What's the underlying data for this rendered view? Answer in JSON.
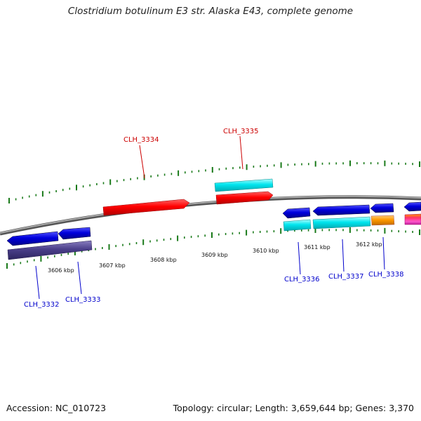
{
  "title": "Clostridium botulinum E3 str. Alaska E43, complete genome",
  "footer": {
    "accession": "Accession: NC_010723",
    "topology": "Topology: circular; Length: 3,659,644 bp; Genes: 3,370"
  },
  "colors": {
    "backbone": "#808080",
    "tick": "#1a7a1a",
    "forward_label": "#cc0000",
    "reverse_label": "#0000cc",
    "cds_forward": "#ff0000",
    "cds_reverse": "#0000dd",
    "rna_cyan": "#00e5ee",
    "orange": "#ff9900",
    "slate": "#4b3f8a"
  },
  "scale": {
    "tick_labels": [
      "3606 kbp",
      "3607 kbp",
      "3608 kbp",
      "3609 kbp",
      "3610 kbp",
      "3611 kbp",
      "3612 kbp"
    ]
  },
  "genes": [
    {
      "id": "g3332",
      "label": "CLH_3332",
      "strand": "reverse",
      "color": "#0000dd"
    },
    {
      "id": "g3333",
      "label": "CLH_3333",
      "strand": "reverse",
      "color": "#0000dd"
    },
    {
      "id": "g3334",
      "label": "CLH_3334",
      "strand": "forward",
      "color": "#ff0000"
    },
    {
      "id": "g3335",
      "label": "CLH_3335",
      "strand": "forward",
      "color": "#ff0000"
    },
    {
      "id": "g3336",
      "label": "CLH_3336",
      "strand": "reverse",
      "color": "#0000dd"
    },
    {
      "id": "g3337",
      "label": "CLH_3337",
      "strand": "reverse",
      "color": "#0000dd"
    },
    {
      "id": "g3338",
      "label": "CLH_3338",
      "strand": "reverse",
      "color": "#0000dd"
    }
  ]
}
